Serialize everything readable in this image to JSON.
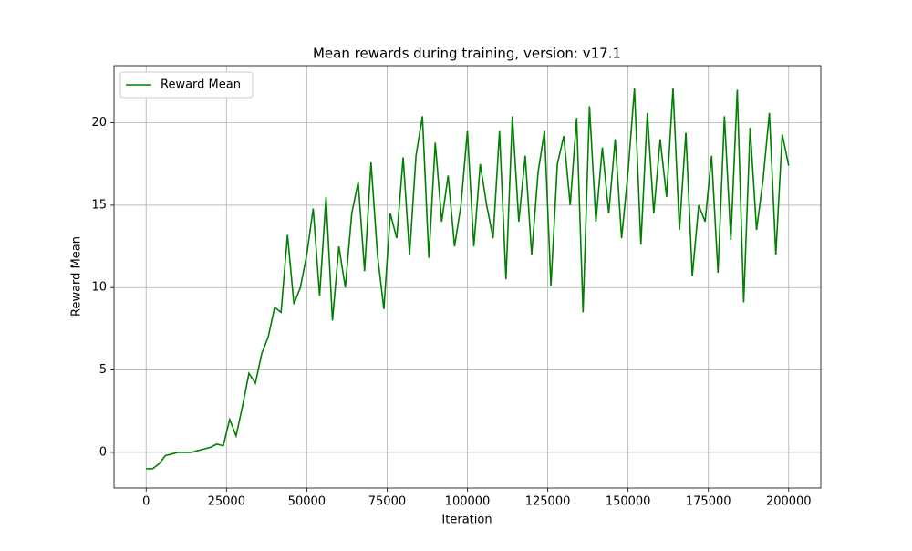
{
  "chart_data": {
    "type": "line",
    "title": "Mean rewards during training, version: v17.1",
    "xlabel": "Iteration",
    "ylabel": "Reward Mean",
    "x": [
      0,
      2000,
      4000,
      6000,
      8000,
      10000,
      12000,
      14000,
      16000,
      18000,
      20000,
      22000,
      24000,
      26000,
      28000,
      30000,
      32000,
      34000,
      36000,
      38000,
      40000,
      42000,
      44000,
      46000,
      48000,
      50000,
      52000,
      54000,
      56000,
      58000,
      60000,
      62000,
      64000,
      66000,
      68000,
      70000,
      72000,
      74000,
      76000,
      78000,
      80000,
      82000,
      84000,
      86000,
      88000,
      90000,
      92000,
      94000,
      96000,
      98000,
      100000,
      102000,
      104000,
      106000,
      108000,
      110000,
      112000,
      114000,
      116000,
      118000,
      120000,
      122000,
      124000,
      126000,
      128000,
      130000,
      132000,
      134000,
      136000,
      138000,
      140000,
      142000,
      144000,
      146000,
      148000,
      150000,
      152000,
      154000,
      156000,
      158000,
      160000,
      162000,
      164000,
      166000,
      168000,
      170000,
      172000,
      174000,
      176000,
      178000,
      180000,
      182000,
      184000,
      186000,
      188000,
      190000,
      192000,
      194000,
      196000,
      198000,
      200000
    ],
    "series": [
      {
        "name": "Reward Mean",
        "color": "#008000",
        "values": [
          -1,
          -1,
          -0.7,
          -0.2,
          -0.1,
          0,
          0,
          0,
          0.1,
          0.2,
          0.3,
          0.5,
          0.4,
          2.0,
          1.0,
          2.8,
          4.8,
          4.2,
          6.0,
          7.0,
          8.8,
          8.5,
          13.2,
          9.0,
          10.0,
          12.0,
          14.8,
          9.5,
          15.5,
          8.0,
          12.5,
          10.0,
          14.5,
          16.4,
          11.0,
          17.6,
          12.0,
          8.7,
          14.5,
          13.0,
          17.9,
          12.0,
          18.0,
          20.4,
          11.8,
          18.8,
          14.0,
          16.8,
          12.5,
          15.0,
          19.5,
          12.5,
          17.5,
          15.0,
          13.0,
          19.5,
          10.5,
          20.4,
          14.0,
          18.0,
          12.0,
          17.0,
          19.5,
          10.1,
          17.5,
          19.2,
          15.0,
          20.3,
          8.5,
          21.0,
          14.0,
          18.5,
          14.5,
          19.0,
          13.0,
          17.0,
          22.1,
          12.6,
          20.6,
          14.5,
          19.0,
          15.5,
          22.1,
          13.5,
          19.4,
          10.7,
          15.0,
          14.0,
          18.0,
          10.9,
          20.4,
          12.9,
          22.0,
          9.1,
          19.7,
          13.5,
          16.5,
          20.6,
          12.0,
          19.3,
          17.4
        ]
      }
    ],
    "xlim": [
      -10000,
      210000
    ],
    "xticks": [
      0,
      25000,
      50000,
      75000,
      100000,
      125000,
      150000,
      175000,
      200000
    ],
    "ylim": [
      -2.165,
      23.465
    ],
    "yticks": [
      0,
      5,
      10,
      15,
      20
    ],
    "grid": true,
    "legend": "upper left"
  }
}
